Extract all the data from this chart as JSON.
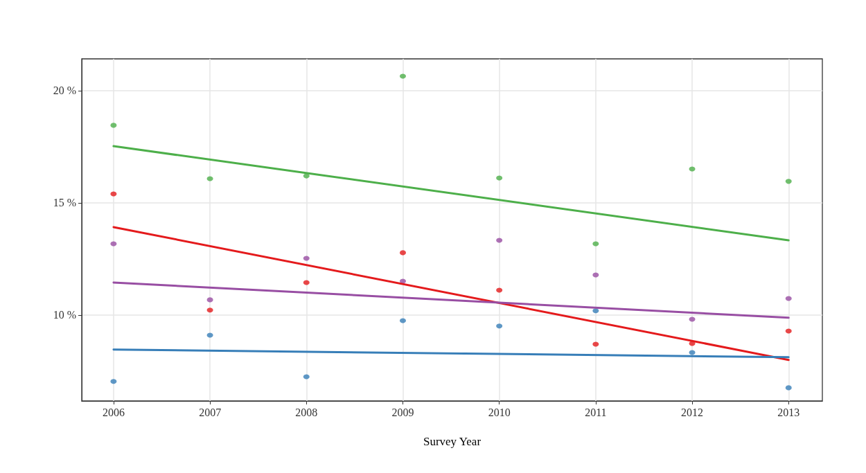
{
  "chart_data": {
    "type": "scatter",
    "xlabel": "Survey Year",
    "x": [
      2006,
      2007,
      2008,
      2009,
      2010,
      2011,
      2012,
      2013
    ],
    "xlim": [
      2005.67,
      2013.35
    ],
    "ylim": [
      6.17,
      21.42
    ],
    "xticks": [
      2006,
      2007,
      2008,
      2009,
      2010,
      2011,
      2012,
      2013
    ],
    "yticks": [
      {
        "value": 10,
        "label": "10 %"
      },
      {
        "value": 15,
        "label": "15 %"
      },
      {
        "value": 20,
        "label": "20 %"
      }
    ],
    "grid": true,
    "marker": "circle",
    "series": [
      {
        "color": "#4daf4a",
        "values": [
          18.46,
          16.08,
          16.2,
          20.65,
          16.11,
          13.18,
          16.51,
          15.96
        ]
      },
      {
        "color": "#e41a1c",
        "values": [
          15.4,
          10.22,
          11.45,
          12.78,
          11.11,
          8.7,
          8.73,
          9.29
        ]
      },
      {
        "color": "#984ea3",
        "values": [
          13.18,
          10.68,
          12.53,
          11.51,
          13.33,
          11.79,
          9.81,
          10.74
        ]
      },
      {
        "color": "#377eb8",
        "values": [
          7.04,
          9.1,
          7.25,
          9.75,
          9.51,
          10.19,
          8.33,
          6.76
        ]
      },
      {
        "type": "line",
        "marker": "none",
        "line_style": "solid",
        "color": "#4daf4a",
        "values": [
          17.53,
          null,
          null,
          null,
          null,
          null,
          null,
          13.33
        ]
      },
      {
        "type": "line",
        "marker": "none",
        "line_style": "solid",
        "color": "#e41a1c",
        "values": [
          13.92,
          null,
          null,
          null,
          null,
          null,
          null,
          8.0
        ]
      },
      {
        "type": "line",
        "marker": "none",
        "line_style": "solid",
        "color": "#984ea3",
        "values": [
          11.45,
          null,
          null,
          null,
          null,
          null,
          null,
          9.88
        ]
      },
      {
        "type": "line",
        "marker": "none",
        "line_style": "solid",
        "color": "#377eb8",
        "values": [
          8.46,
          null,
          null,
          null,
          null,
          null,
          null,
          8.12
        ]
      }
    ]
  }
}
